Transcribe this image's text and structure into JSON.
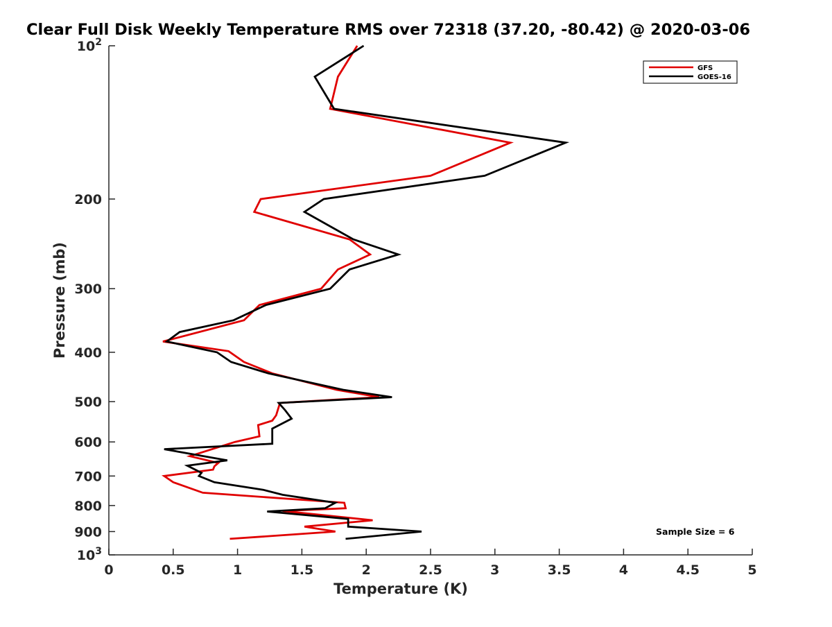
{
  "chart_data": {
    "type": "line",
    "title": "Clear Full Disk Weekly Temperature RMS over 72318 (37.20, -80.42) @ 2020-03-06",
    "xlabel": "Temperature (K)",
    "ylabel": "Pressure (mb)",
    "xlim": [
      0,
      5
    ],
    "ylim": [
      100,
      1000
    ],
    "y_scale": "log",
    "y_reversed": true,
    "x_ticks": [
      "0",
      "0.5",
      "1",
      "1.5",
      "2",
      "2.5",
      "3",
      "3.5",
      "4",
      "4.5",
      "5"
    ],
    "x_tick_values": [
      0,
      0.5,
      1,
      1.5,
      2,
      2.5,
      3,
      3.5,
      4,
      4.5,
      5
    ],
    "y_ticks": [
      {
        "value": 100,
        "base": "10",
        "exp": "2"
      },
      {
        "value": 200,
        "label": "200"
      },
      {
        "value": 300,
        "label": "300"
      },
      {
        "value": 400,
        "label": "400"
      },
      {
        "value": 500,
        "label": "500"
      },
      {
        "value": 600,
        "label": "600"
      },
      {
        "value": 700,
        "label": "700"
      },
      {
        "value": 800,
        "label": "800"
      },
      {
        "value": 900,
        "label": "900"
      },
      {
        "value": 1000,
        "base": "10",
        "exp": "3"
      }
    ],
    "legend_position": "top-right",
    "grid": false,
    "annotation": "Sample Size = 6",
    "series": [
      {
        "name": "GFS",
        "color": "#e00000",
        "points": [
          [
            1.93,
            100
          ],
          [
            1.78,
            115
          ],
          [
            1.72,
            133
          ],
          [
            3.12,
            155
          ],
          [
            2.5,
            180
          ],
          [
            1.18,
            200
          ],
          [
            1.13,
            212
          ],
          [
            1.87,
            240
          ],
          [
            2.03,
            257
          ],
          [
            1.78,
            275
          ],
          [
            1.65,
            300
          ],
          [
            1.17,
            323
          ],
          [
            1.05,
            346
          ],
          [
            0.42,
            381
          ],
          [
            0.93,
            398
          ],
          [
            1.05,
            418
          ],
          [
            1.27,
            440
          ],
          [
            1.77,
            474
          ],
          [
            2.1,
            490
          ],
          [
            1.33,
            503
          ],
          [
            1.3,
            532
          ],
          [
            1.27,
            545
          ],
          [
            1.16,
            556
          ],
          [
            1.17,
            585
          ],
          [
            0.98,
            600
          ],
          [
            0.63,
            640
          ],
          [
            0.85,
            660
          ],
          [
            0.82,
            670
          ],
          [
            0.81,
            680
          ],
          [
            0.43,
            700
          ],
          [
            0.5,
            720
          ],
          [
            0.73,
            755
          ],
          [
            1.83,
            790
          ],
          [
            1.84,
            810
          ],
          [
            1.35,
            820
          ],
          [
            2.05,
            855
          ],
          [
            1.52,
            880
          ],
          [
            1.76,
            900
          ],
          [
            0.94,
            930
          ]
        ]
      },
      {
        "name": "GOES-16",
        "color": "#000000",
        "points": [
          [
            1.98,
            100
          ],
          [
            1.6,
            115
          ],
          [
            1.75,
            133
          ],
          [
            3.55,
            155
          ],
          [
            2.92,
            180
          ],
          [
            1.67,
            200
          ],
          [
            1.52,
            212
          ],
          [
            1.9,
            240
          ],
          [
            2.25,
            257
          ],
          [
            1.87,
            275
          ],
          [
            1.72,
            300
          ],
          [
            1.22,
            323
          ],
          [
            0.97,
            346
          ],
          [
            0.55,
            365
          ],
          [
            0.45,
            381
          ],
          [
            0.84,
            400
          ],
          [
            0.95,
            418
          ],
          [
            1.24,
            440
          ],
          [
            1.82,
            474
          ],
          [
            2.2,
            490
          ],
          [
            1.32,
            503
          ],
          [
            1.37,
            520
          ],
          [
            1.42,
            540
          ],
          [
            1.27,
            565
          ],
          [
            1.27,
            605
          ],
          [
            0.43,
            620
          ],
          [
            0.92,
            652
          ],
          [
            0.61,
            668
          ],
          [
            0.72,
            690
          ],
          [
            0.7,
            700
          ],
          [
            0.82,
            720
          ],
          [
            1.2,
            745
          ],
          [
            1.35,
            762
          ],
          [
            1.76,
            790
          ],
          [
            1.68,
            810
          ],
          [
            1.23,
            822
          ],
          [
            1.86,
            850
          ],
          [
            1.86,
            880
          ],
          [
            2.43,
            900
          ],
          [
            1.84,
            930
          ]
        ]
      }
    ]
  }
}
